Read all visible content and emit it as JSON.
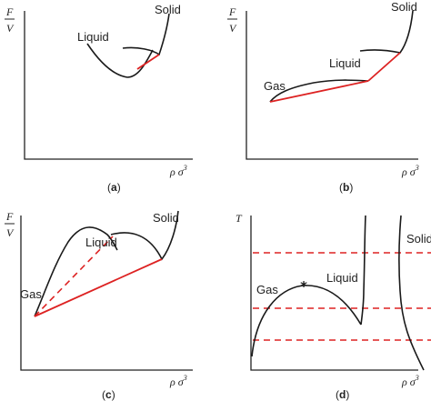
{
  "colors": {
    "axis": "#222222",
    "curve": "#1a1a1a",
    "coexistence_line": "#dd2222"
  },
  "panels": [
    {
      "caption": "a",
      "y_label": {
        "numerator": "F",
        "denominator": "V"
      },
      "x_label": {
        "base": "ρ σ",
        "exponent": "3"
      },
      "phases": [
        "Liquid",
        "Solid"
      ]
    },
    {
      "caption": "b",
      "y_label": {
        "numerator": "F",
        "denominator": "V"
      },
      "x_label": {
        "base": "ρ σ",
        "exponent": "3"
      },
      "phases": [
        "Gas",
        "Liquid",
        "Solid"
      ]
    },
    {
      "caption": "c",
      "y_label": {
        "numerator": "F",
        "denominator": "V"
      },
      "x_label": {
        "base": "ρ σ",
        "exponent": "3"
      },
      "phases": [
        "Gas",
        "Liquid",
        "Solid"
      ]
    },
    {
      "caption": "d",
      "y_label": {
        "text": "T"
      },
      "x_label": {
        "base": "ρ σ",
        "exponent": "3"
      },
      "phases": [
        "Gas",
        "Liquid",
        "Solid"
      ],
      "critical_point_marker": "*"
    }
  ]
}
